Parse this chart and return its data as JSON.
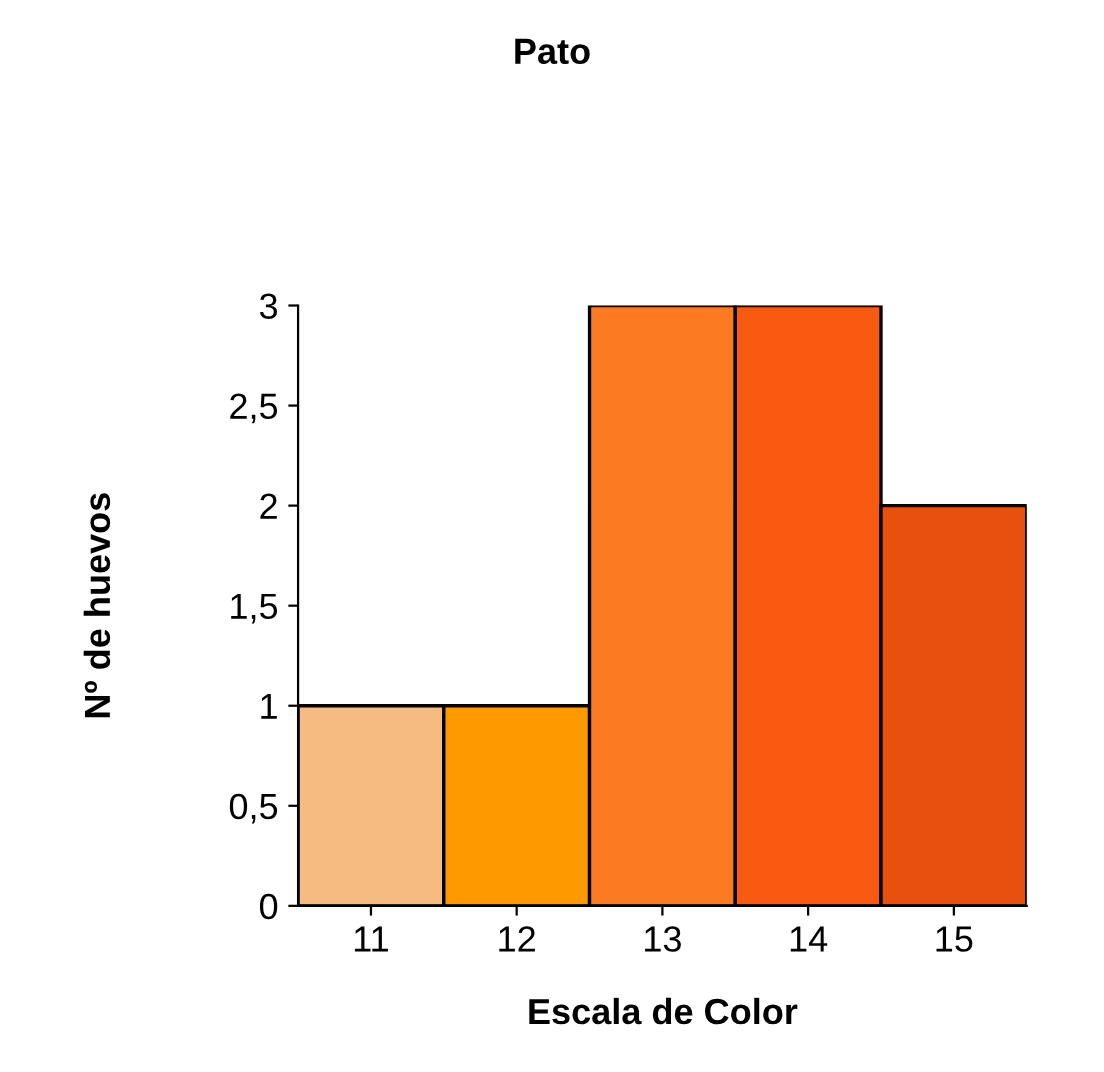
{
  "chart_data": {
    "type": "bar",
    "title": "Pato",
    "xlabel": "Escala de Color",
    "ylabel": "Nº de huevos",
    "categories": [
      "11",
      "12",
      "13",
      "14",
      "15"
    ],
    "values": [
      1,
      1,
      3,
      3,
      2
    ],
    "colors": [
      "#f5bb80",
      "#ff9900",
      "#fb7a22",
      "#f85a12",
      "#e8500e"
    ],
    "ylim": [
      0,
      3
    ],
    "yticks": [
      0,
      {
        "value": 0.5,
        "label": "0,5"
      },
      1,
      {
        "value": 1.5,
        "label": "1,5"
      },
      2,
      {
        "value": 2.5,
        "label": "2,5"
      },
      3
    ],
    "grid": false,
    "legend": false
  }
}
